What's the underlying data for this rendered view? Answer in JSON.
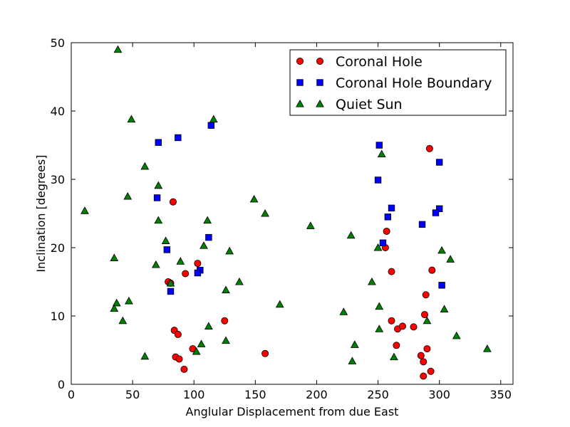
{
  "chart_data": {
    "type": "scatter",
    "title": "",
    "xlabel": "Anglular Displacement from due East",
    "ylabel": "Inclination [degrees]",
    "xlim": [
      0,
      360
    ],
    "ylim": [
      0,
      50
    ],
    "xticks": [
      0,
      50,
      100,
      150,
      200,
      250,
      300,
      350
    ],
    "yticks": [
      0,
      10,
      20,
      30,
      40,
      50
    ],
    "grid": false,
    "legend_position": "top-right",
    "series": [
      {
        "name": "Coronal Hole",
        "marker": "circle",
        "color": "#ff0000",
        "points": [
          [
            83,
            26.7
          ],
          [
            79,
            15.0
          ],
          [
            81,
            14.8
          ],
          [
            103,
            17.7
          ],
          [
            93,
            16.2
          ],
          [
            84,
            7.9
          ],
          [
            87,
            7.3
          ],
          [
            85,
            4.0
          ],
          [
            88,
            3.7
          ],
          [
            92,
            2.2
          ],
          [
            99,
            5.2
          ],
          [
            125,
            9.3
          ],
          [
            158,
            4.5
          ],
          [
            257,
            22.4
          ],
          [
            256,
            20.0
          ],
          [
            261,
            16.5
          ],
          [
            261,
            9.3
          ],
          [
            266,
            8.1
          ],
          [
            270,
            8.5
          ],
          [
            279,
            8.4
          ],
          [
            265,
            5.7
          ],
          [
            289,
            13.1
          ],
          [
            288,
            10.2
          ],
          [
            290,
            5.2
          ],
          [
            285,
            4.2
          ],
          [
            287,
            3.3
          ],
          [
            287,
            1.2
          ],
          [
            293,
            1.9
          ],
          [
            292,
            34.5
          ],
          [
            294,
            16.7
          ]
        ]
      },
      {
        "name": "Coronal Hole Boundary",
        "marker": "square",
        "color": "#0000ff",
        "points": [
          [
            71,
            35.4
          ],
          [
            87,
            36.1
          ],
          [
            114,
            37.9
          ],
          [
            70,
            27.3
          ],
          [
            78,
            19.7
          ],
          [
            112,
            21.5
          ],
          [
            105,
            16.7
          ],
          [
            103,
            16.3
          ],
          [
            81,
            13.6
          ],
          [
            251,
            35.0
          ],
          [
            250,
            29.9
          ],
          [
            261,
            25.8
          ],
          [
            258,
            24.5
          ],
          [
            254,
            20.7
          ],
          [
            286,
            23.4
          ],
          [
            300,
            32.5
          ],
          [
            300,
            25.7
          ],
          [
            297,
            25.1
          ],
          [
            302,
            14.5
          ]
        ]
      },
      {
        "name": "Quiet Sun",
        "marker": "triangle",
        "color": "#008000",
        "points": [
          [
            38,
            49.0
          ],
          [
            49,
            38.8
          ],
          [
            116,
            38.8
          ],
          [
            60,
            31.9
          ],
          [
            71,
            29.1
          ],
          [
            46,
            27.5
          ],
          [
            11,
            25.4
          ],
          [
            71,
            24.0
          ],
          [
            111,
            24.0
          ],
          [
            149,
            27.1
          ],
          [
            158,
            25.0
          ],
          [
            77,
            21.0
          ],
          [
            108,
            20.3
          ],
          [
            129,
            19.5
          ],
          [
            35,
            18.5
          ],
          [
            69,
            17.5
          ],
          [
            89,
            18.0
          ],
          [
            81,
            14.8
          ],
          [
            137,
            15.0
          ],
          [
            126,
            13.8
          ],
          [
            47,
            12.2
          ],
          [
            37,
            11.9
          ],
          [
            35,
            11.1
          ],
          [
            42,
            9.3
          ],
          [
            112,
            8.5
          ],
          [
            106,
            5.9
          ],
          [
            102,
            4.8
          ],
          [
            60,
            4.1
          ],
          [
            126,
            6.4
          ],
          [
            170,
            11.7
          ],
          [
            195,
            23.2
          ],
          [
            228,
            21.8
          ],
          [
            222,
            10.6
          ],
          [
            245,
            15.0
          ],
          [
            250,
            20.0
          ],
          [
            251,
            11.4
          ],
          [
            251,
            8.1
          ],
          [
            231,
            5.8
          ],
          [
            229,
            3.4
          ],
          [
            253,
            33.7
          ],
          [
            263,
            4.0
          ],
          [
            290,
            9.3
          ],
          [
            302,
            19.6
          ],
          [
            309,
            18.3
          ],
          [
            304,
            11.0
          ],
          [
            314,
            7.1
          ],
          [
            339,
            5.2
          ]
        ]
      }
    ]
  }
}
